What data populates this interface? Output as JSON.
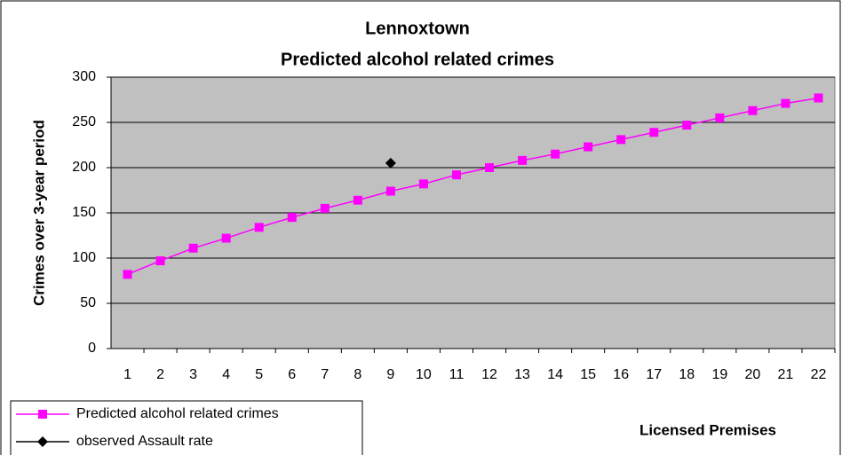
{
  "chart_data": {
    "type": "line",
    "title": "Lennoxtown",
    "subtitle": "Predicted alcohol related crimes",
    "x_label": "Licensed Premises",
    "y_label": "Crimes over 3-year period",
    "categories": [
      1,
      2,
      3,
      4,
      5,
      6,
      7,
      8,
      9,
      10,
      11,
      12,
      13,
      14,
      15,
      16,
      17,
      18,
      19,
      20,
      21,
      22
    ],
    "series": [
      {
        "name": "Predicted alcohol related crimes",
        "color": "#ff00ff",
        "marker": "square",
        "values": [
          82,
          97,
          111,
          122,
          134,
          145,
          155,
          164,
          174,
          182,
          192,
          200,
          208,
          215,
          223,
          231,
          239,
          247,
          255,
          263,
          271,
          277
        ]
      },
      {
        "name": "observed Assault rate",
        "color": "#000000",
        "marker": "diamond",
        "values": [
          null,
          null,
          null,
          null,
          null,
          null,
          null,
          null,
          205,
          null,
          null,
          null,
          null,
          null,
          null,
          null,
          null,
          null,
          null,
          null,
          null,
          null
        ]
      }
    ],
    "ylim": [
      0,
      300
    ],
    "yticks": [
      0,
      50,
      100,
      150,
      200,
      250,
      300
    ],
    "grid": true,
    "plot_background": "#c0c0c0",
    "legend": "bottom-left"
  }
}
